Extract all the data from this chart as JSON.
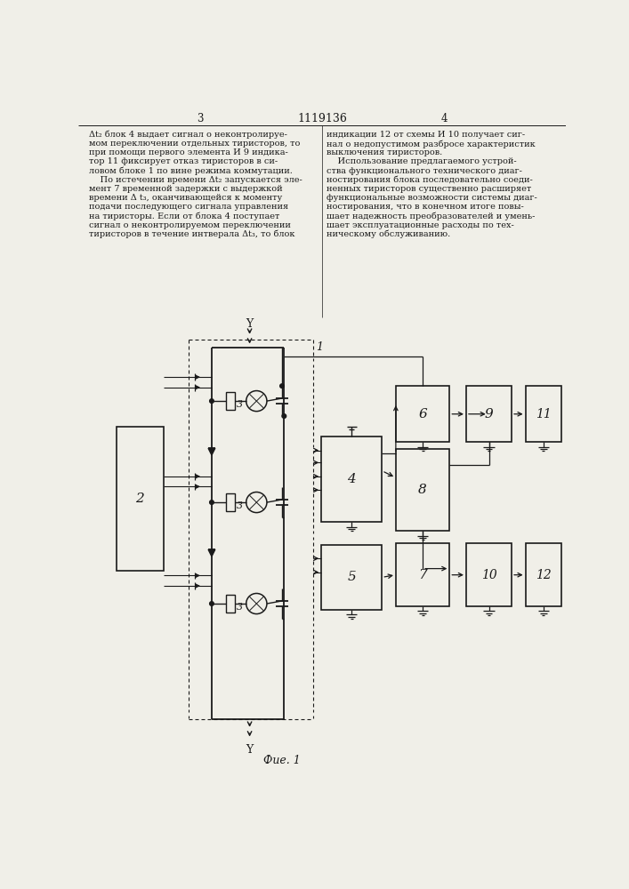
{
  "title": "1119136",
  "page_left": "3",
  "page_right": "4",
  "fig_caption": "Фие. 1",
  "bg_color": "#f0efe8",
  "line_color": "#1a1a1a",
  "text_color": "#1a1a1a",
  "left_col_lines": [
    "Δt₂ блок 4 выдает сигнал о неконтролируе-",
    "мом переключении отдельных тиристоров, то",
    "при помощи первого элемента И 9 индика-",
    "тор 11 фиксирует отказ тиристоров в си-",
    "ловом блоке 1 по вине режима коммутации.",
    "    По истечении времени Δt₂ запускается эле-",
    "мент 7 временной задержки с выдержкой",
    "времени Δ t₃, оканчивающейся к моменту",
    "подачи последующего сигнала управления",
    "на тиристоры. Если от блока 4 поступает",
    "сигнал о неконтролируемом переключении",
    "тиристоров в течение интверала Δt₃, то блок"
  ],
  "right_col_lines": [
    "индикации 12 от схемы И 10 получает сиг-",
    "нал о недопустимом разбросе характеристик",
    "выключения тиристоров.",
    "    Использование предлагаемого устрой-",
    "ства функционального технического диаг-",
    "ностирования блока последовательно соеди-",
    "ненных тиристоров существенно расширяет",
    "функциональные возможности системы диаг-",
    "ностирования, что в конечном итоге повы-",
    "шает надежность преобразователей и умень-",
    "шает эксплуатационные расходы по тех-",
    "ническому обслуживанию."
  ]
}
